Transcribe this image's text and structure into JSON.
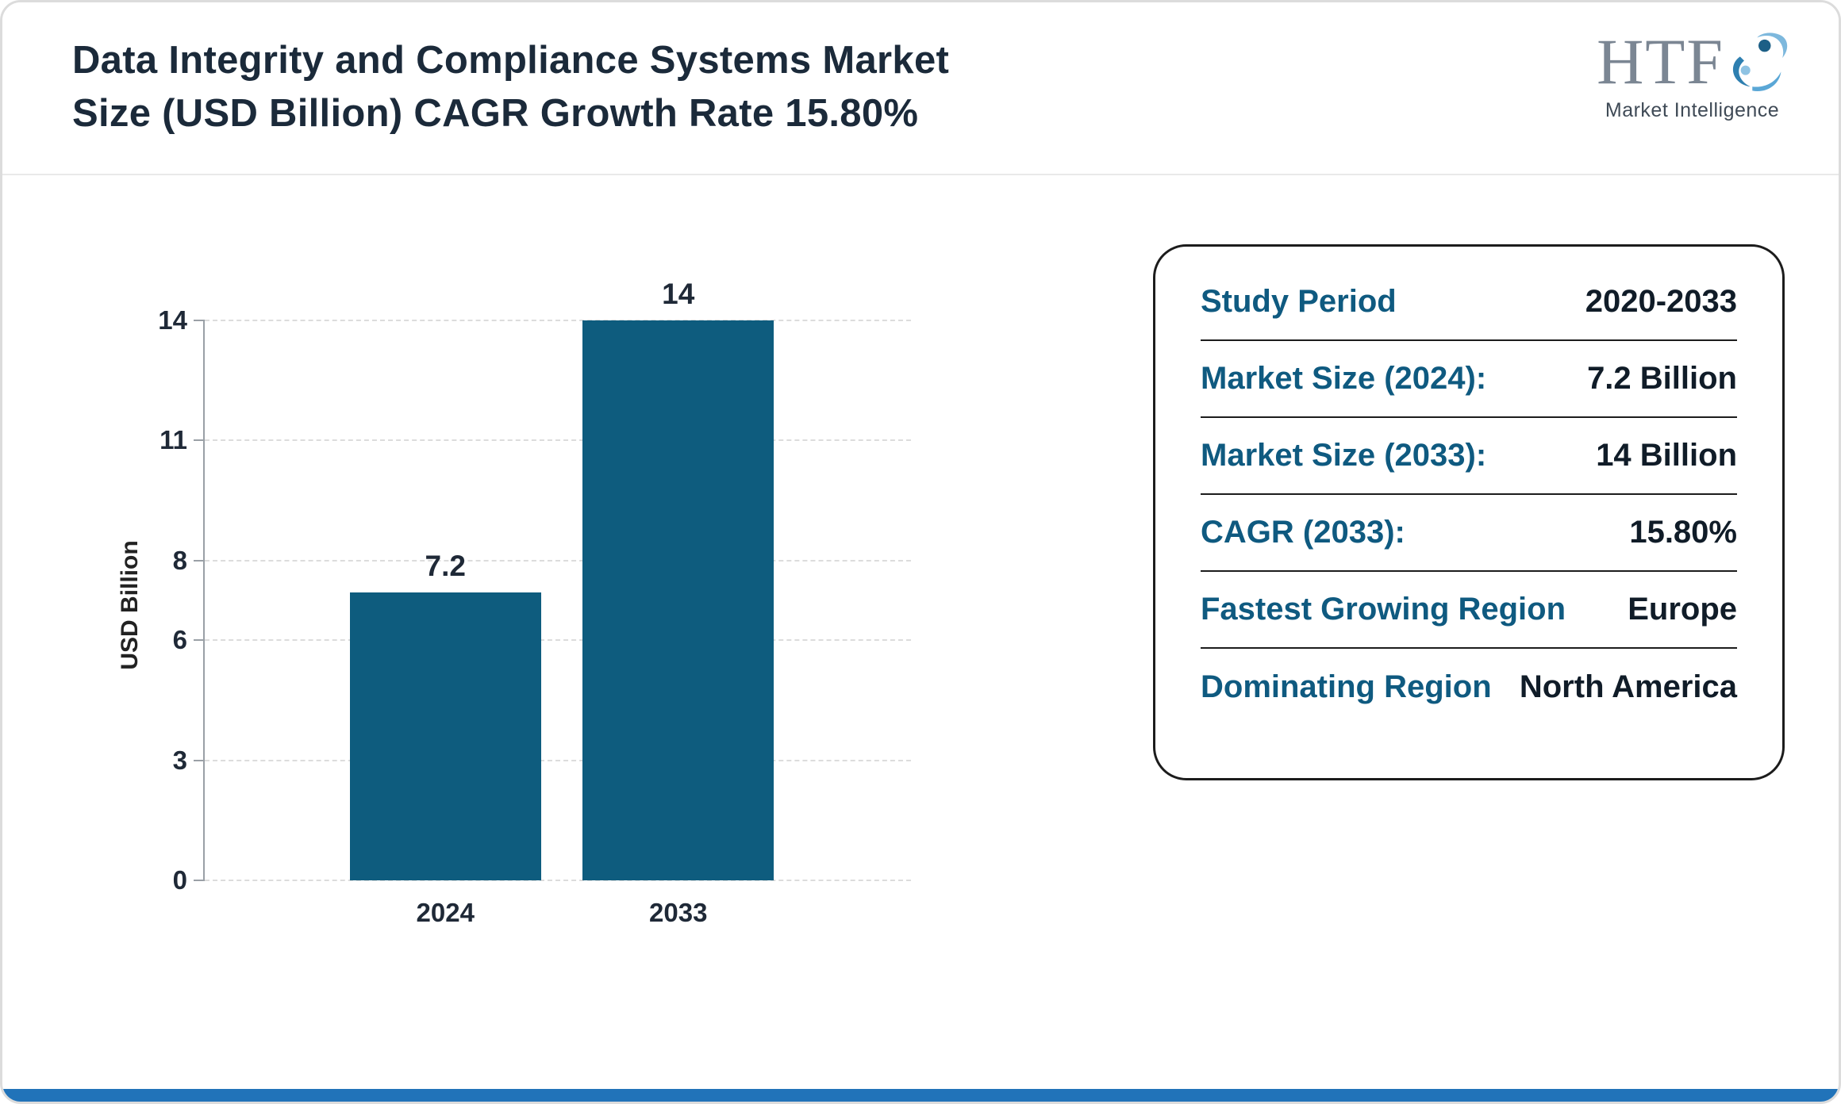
{
  "page": {
    "title_line1": "Data Integrity and Compliance Systems Market",
    "title_line2": "Size (USD Billion) CAGR Growth Rate 15.80%"
  },
  "logo": {
    "name": "HTF",
    "subtitle": "Market Intelligence"
  },
  "chart_data": {
    "type": "bar",
    "categories": [
      "2024",
      "2033"
    ],
    "values": [
      7.2,
      14
    ],
    "value_labels": [
      "7.2",
      "14"
    ],
    "title": "Data Integrity and Compliance Systems Market Size (USD Billion) CAGR Growth Rate 15.80%",
    "xlabel": "",
    "ylabel": "USD Billion",
    "yticks": [
      0,
      3,
      6,
      8,
      11,
      14
    ],
    "ylim": [
      0,
      14
    ],
    "grid": "dashed-horizontal",
    "legend": "none",
    "bar_color": "#0e5c7e"
  },
  "info_card": {
    "rows": [
      {
        "label": "Study Period",
        "value": "2020-2033"
      },
      {
        "label": "Market Size (2024):",
        "value": "7.2 Billion"
      },
      {
        "label": "Market Size (2033):",
        "value": "14 Billion"
      },
      {
        "label": "CAGR (2033):",
        "value": "15.80%"
      },
      {
        "label": "Fastest Growing Region",
        "value": "Europe"
      },
      {
        "label": "Dominating Region",
        "value": "North America"
      }
    ]
  },
  "colors": {
    "bar": "#0e5c7e",
    "title_text": "#1b2a3a",
    "card_label": "#0f5a80",
    "card_value": "#101c28",
    "footer": "#2173b9"
  }
}
